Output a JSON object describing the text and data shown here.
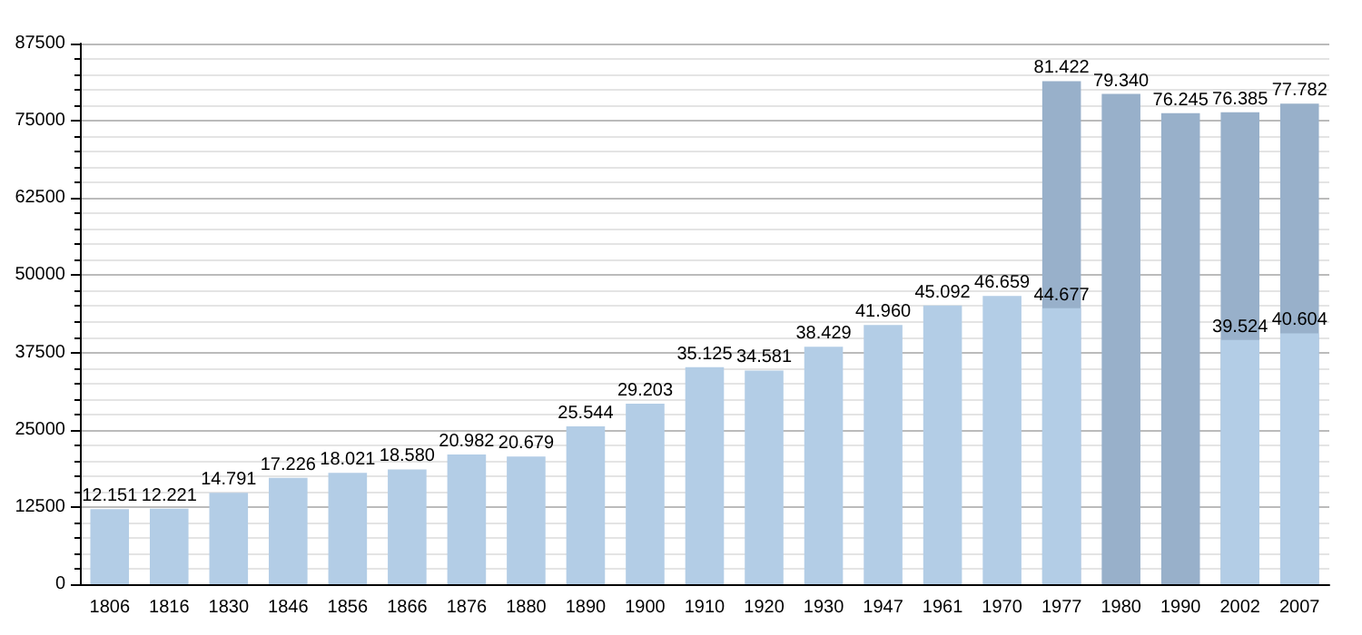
{
  "chart_data": {
    "type": "bar",
    "categories": [
      "1806",
      "1816",
      "1830",
      "1846",
      "1856",
      "1866",
      "1876",
      "1880",
      "1890",
      "1900",
      "1910",
      "1920",
      "1930",
      "1947",
      "1961",
      "1970",
      "1977",
      "1980",
      "1990",
      "2002",
      "2007"
    ],
    "series": [
      {
        "color": "#98b0ca",
        "values": [
          null,
          null,
          null,
          null,
          null,
          null,
          null,
          null,
          null,
          null,
          null,
          null,
          null,
          null,
          null,
          null,
          81422,
          79340,
          76245,
          76385,
          77782
        ],
        "value_labels": [
          null,
          null,
          null,
          null,
          null,
          null,
          null,
          null,
          null,
          null,
          null,
          null,
          null,
          null,
          null,
          null,
          "81.422",
          "79.340",
          "76.245",
          "76.385",
          "77.782"
        ]
      },
      {
        "color": "#b3cde6",
        "values": [
          12151,
          12221,
          14791,
          17226,
          18021,
          18580,
          20982,
          20679,
          25544,
          29203,
          35125,
          34581,
          38429,
          41960,
          45092,
          46659,
          44677,
          null,
          null,
          39524,
          40604
        ],
        "value_labels": [
          "12.151",
          "12.221",
          "14.791",
          "17.226",
          "18.021",
          "18.580",
          "20.982",
          "20.679",
          "25.544",
          "29.203",
          "35.125",
          "34.581",
          "38.429",
          "41.960",
          "45.092",
          "46.659",
          "44.677",
          null,
          null,
          "39.524",
          "40.604"
        ]
      }
    ],
    "ylim": [
      0,
      87500
    ],
    "yticks": [
      0,
      12500,
      25000,
      37500,
      50000,
      62500,
      75000,
      87500
    ],
    "grid": "y"
  }
}
